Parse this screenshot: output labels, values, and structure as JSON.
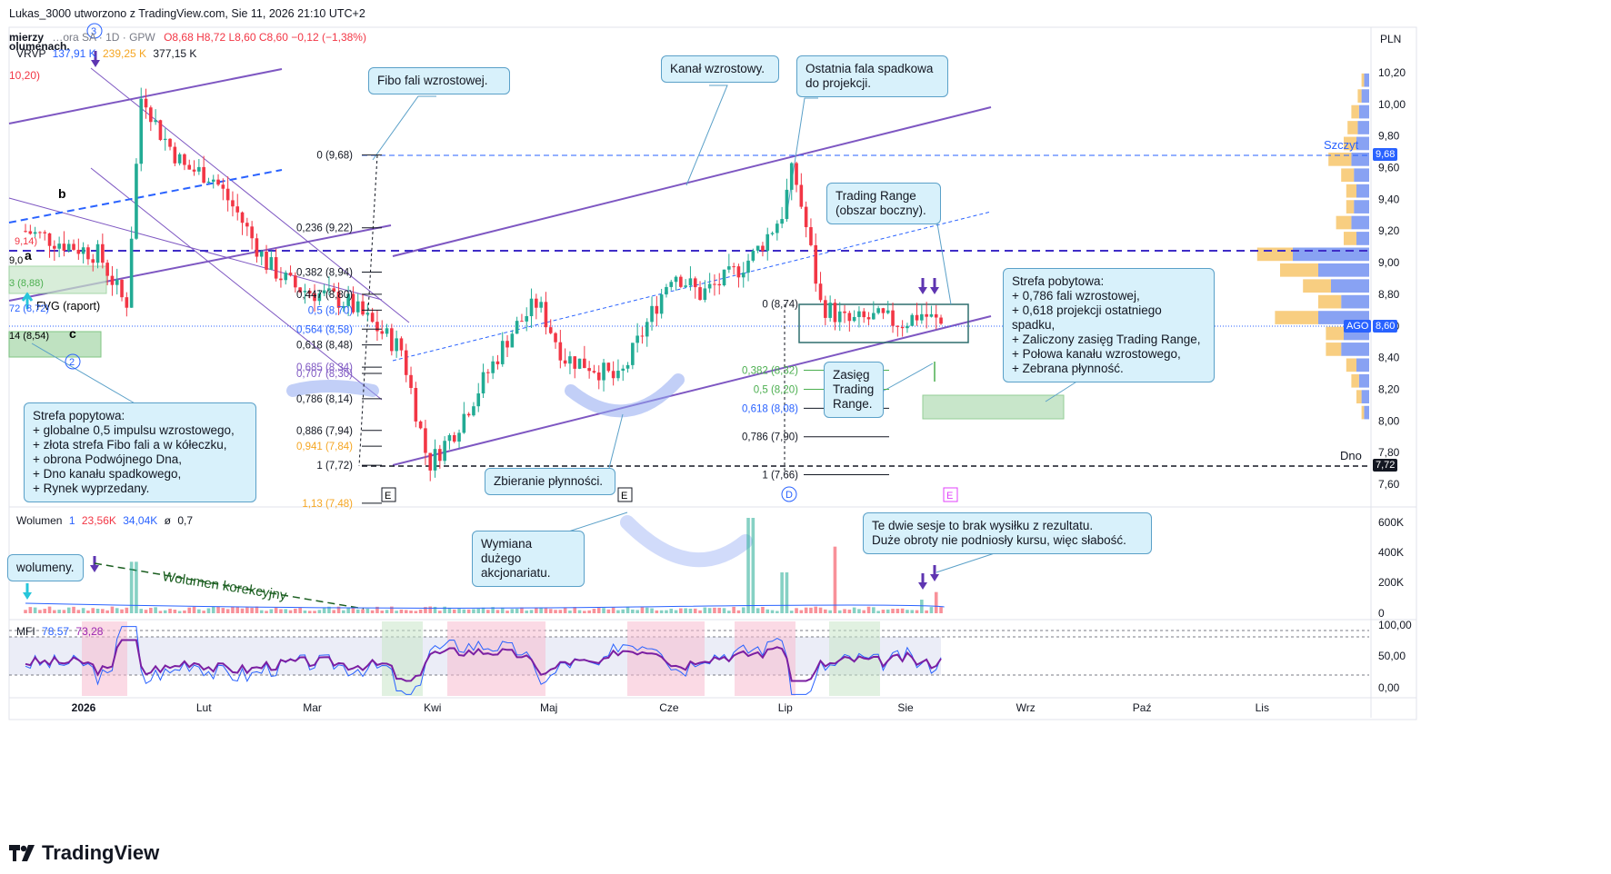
{
  "header": {
    "attribution": "Lukas_3000 utworzono z TradingView.com, Sie 11, 2026 21:10 UTC+2"
  },
  "legend": {
    "symbol": "…ora SA · 1D · GPW",
    "open": "O8,68",
    "high": "H8,72",
    "low": "L8,60",
    "close": "C8,60",
    "change": "−0,12 (−1,38%)",
    "vrvp_label": "VRVP",
    "vrvp_v1": "137,91 K",
    "vrvp_v2": "239,25 K",
    "vrvp_v3": "377,15 K",
    "left_value": "10,20)",
    "left_text1": "mierzy",
    "left_text2": "olumenach."
  },
  "price_axis": {
    "currency": "PLN",
    "ticks": [
      "10,20",
      "10,00",
      "9,80",
      "9,60",
      "9,40",
      "9,20",
      "9,00",
      "8,80",
      "8,60",
      "8,40",
      "8,20",
      "8,00",
      "7,80",
      "7,60"
    ],
    "top_label": "Szczyt",
    "top_value": "9,68",
    "bottom_label": "Dno",
    "bottom_value": "7,72",
    "current_tag": "AGO",
    "current_value": "8,60"
  },
  "time_axis": {
    "labels": [
      "2026",
      "Lut",
      "Mar",
      "Kwi",
      "Maj",
      "Cze",
      "Lip",
      "Sie",
      "Wrz",
      "Paź",
      "Lis"
    ]
  },
  "fib_levels": [
    {
      "label": "0 (9,68)",
      "price": 9.68
    },
    {
      "label": "0,236 (9,22)",
      "price": 9.22
    },
    {
      "label": "0,382 (8,94)",
      "price": 8.94
    },
    {
      "label": "0,447 (8,80)",
      "price": 8.8
    },
    {
      "label": "0,5 (8,70)",
      "price": 8.7
    },
    {
      "label": "0,564 (8,58)",
      "price": 8.58
    },
    {
      "label": "0,618 (8,48)",
      "price": 8.48
    },
    {
      "label": "0,685 (8,34)",
      "price": 8.34
    },
    {
      "label": "0,707 (8,30)",
      "price": 8.3
    },
    {
      "label": "0,786 (8,14)",
      "price": 8.14
    },
    {
      "label": "0,886 (7,94)",
      "price": 7.94
    },
    {
      "label": "0,941 (7,84)",
      "price": 7.84
    },
    {
      "label": "1 (7,72)",
      "price": 7.72
    },
    {
      "label": "1,13 (7,48)",
      "price": 7.48
    }
  ],
  "projection_levels": [
    {
      "label": "0 (8,74)",
      "price": 8.74
    },
    {
      "label": "0,382 (8,32)",
      "price": 8.32
    },
    {
      "label": "0,5 (8,20)",
      "price": 8.2
    },
    {
      "label": "0,618 (8,08)",
      "price": 8.08
    },
    {
      "label": "0,786 (7,90)",
      "price": 7.9
    },
    {
      "label": "1 (7,66)",
      "price": 7.66
    }
  ],
  "left_labels": {
    "b": "b",
    "a": "a",
    "c": "c",
    "wave2": "2",
    "wave3": "3",
    "fvg": "FVG (raport)",
    "lv1": "9,14)",
    "lv2": "9,0",
    "lv3": "3 (8,88)",
    "lv4": "72 (8,72)",
    "lv5": "14 (8,54)"
  },
  "event_markers": {
    "e1": "E",
    "e2": "E",
    "d": "D",
    "e3": "E"
  },
  "callouts": {
    "fibo": "Fibo fali wzrostowej.",
    "kanal": "Kanał wzrostowy.",
    "ostatnia": "Ostatnia fala spadkowa\ndo projekcji.",
    "trading_range": "Trading Range\n(obszar boczny).",
    "strefa_pobytowa": "Strefa pobytowa:\n+ 0,786 fali wzrostowej,\n+ 0,618 projekcji ostatniego\n   spadku,\n+ Zaliczony zasięg Trading Range,\n+ Połowa kanału wzrostowego,\n+ Zebrana płynność.",
    "zasieg": "Zasięg\nTrading\nRange.",
    "strefa_popytowa": "Strefa popytowa:\n+ globalne 0,5 impulsu wzrostowego,\n+ złota strefa Fibo fali a w kółeczku,\n+ obrona Podwójnego Dna,\n+ Dno kanału spadkowego,\n+ Rynek wyprzedany.",
    "zbieranie": "Zbieranie płynności.",
    "wymiana": "Wymiana dużego\nakcjonariatu.",
    "sesje": "Te dwie sesje to brak wysiłku z rezultatu.\nDuże obroty nie podniosły kursu, więc słabość.",
    "wolumeny": "wolumeny."
  },
  "volume_pane": {
    "title": "Wolumen",
    "param": "1",
    "v1": "23,56K",
    "v2": "34,04K",
    "v3": "ø",
    "v4": "0,7",
    "ticks": [
      "600K",
      "400K",
      "200K",
      "0"
    ],
    "annotation": "Wolumen korekcyjny"
  },
  "mfi_pane": {
    "title": "MFI",
    "v1": "78,57",
    "v2": "73,28",
    "ticks": [
      "100,00",
      "50,00",
      "0,00"
    ]
  },
  "colors": {
    "up": "#22ab94",
    "down": "#f23645",
    "channel": "#7e57c2",
    "fib": "#131722",
    "blue_dash": "#2962ff"
  },
  "brand": "TradingView",
  "chart_data": {
    "type": "candlestick",
    "price_range": [
      7.48,
      10.35
    ],
    "price_points": [
      [
        "2025-12-17",
        9.2
      ],
      [
        "2026-01-05",
        9.05
      ],
      [
        "2026-01-12",
        8.72
      ],
      [
        "2026-01-16",
        10.1
      ],
      [
        "2026-01-20",
        9.85
      ],
      [
        "2026-01-27",
        9.6
      ],
      [
        "2026-02-03",
        9.55
      ],
      [
        "2026-02-10",
        9.3
      ],
      [
        "2026-02-17",
        9.0
      ],
      [
        "2026-02-24",
        8.85
      ],
      [
        "2026-03-03",
        8.8
      ],
      [
        "2026-03-10",
        8.75
      ],
      [
        "2026-03-17",
        8.6
      ],
      [
        "2026-03-24",
        8.45
      ],
      [
        "2026-03-31",
        7.72
      ],
      [
        "2026-04-07",
        7.95
      ],
      [
        "2026-04-14",
        8.25
      ],
      [
        "2026-04-21",
        8.55
      ],
      [
        "2026-04-28",
        8.75
      ],
      [
        "2026-05-05",
        8.4
      ],
      [
        "2026-05-12",
        8.35
      ],
      [
        "2026-05-19",
        8.25
      ],
      [
        "2026-05-26",
        8.6
      ],
      [
        "2026-06-02",
        8.95
      ],
      [
        "2026-06-09",
        8.8
      ],
      [
        "2026-06-16",
        8.9
      ],
      [
        "2026-06-23",
        9.05
      ],
      [
        "2026-06-30",
        9.3
      ],
      [
        "2026-07-03",
        9.6
      ],
      [
        "2026-07-07",
        9.15
      ],
      [
        "2026-07-10",
        8.74
      ],
      [
        "2026-07-17",
        8.62
      ],
      [
        "2026-07-24",
        8.65
      ],
      [
        "2026-07-31",
        8.62
      ],
      [
        "2026-08-05",
        8.68
      ],
      [
        "2026-08-11",
        8.6
      ]
    ],
    "volume_range": [
      0,
      650000
    ],
    "mfi_range": [
      0,
      100
    ]
  }
}
